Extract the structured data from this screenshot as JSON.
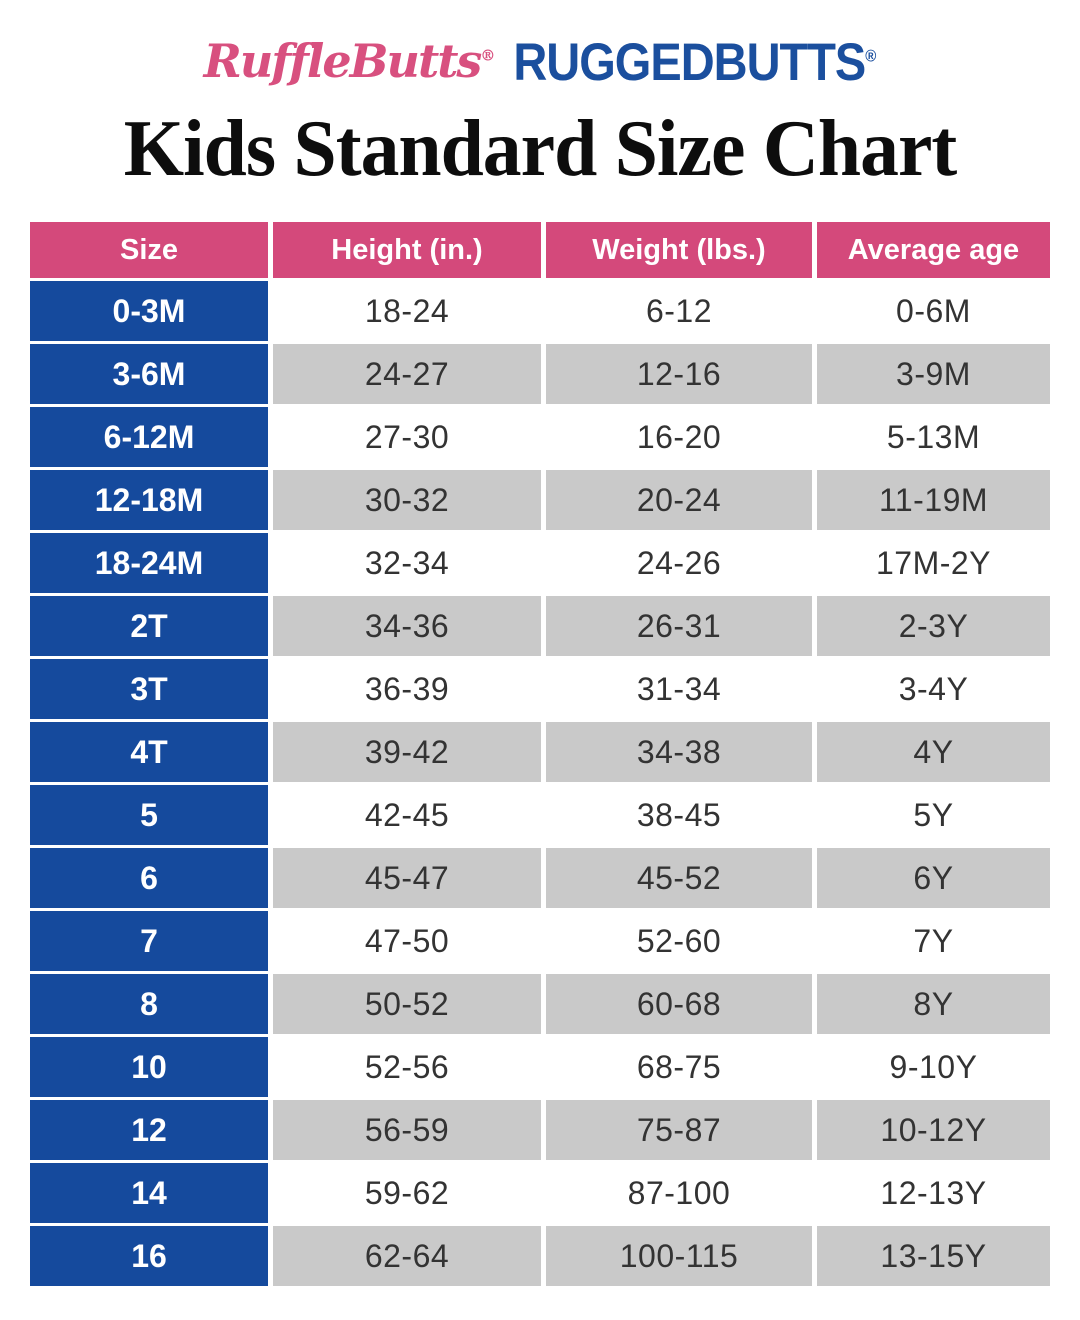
{
  "header": {
    "logo_rufflebutts": "RuffleButts",
    "logo_ruggedbutts": "RUGGEDBUTTS",
    "registered_mark": "®"
  },
  "colors": {
    "pink": "#d4497b",
    "blue": "#154a9d",
    "gray_row": "#c9c9c9",
    "logo_pink": "#d8507f",
    "logo_blue": "#1b4f9e",
    "title_black": "#0d0d0d",
    "cell_text": "#333333"
  },
  "chart_data": {
    "type": "table",
    "title": "Kids Standard Size Chart",
    "columns": [
      "Size",
      "Height (in.)",
      "Weight (lbs.)",
      "Average age"
    ],
    "rows": [
      {
        "size": "0-3M",
        "height": "18-24",
        "weight": "6-12",
        "age": "0-6M"
      },
      {
        "size": "3-6M",
        "height": "24-27",
        "weight": "12-16",
        "age": "3-9M"
      },
      {
        "size": "6-12M",
        "height": "27-30",
        "weight": "16-20",
        "age": "5-13M"
      },
      {
        "size": "12-18M",
        "height": "30-32",
        "weight": "20-24",
        "age": "11-19M"
      },
      {
        "size": "18-24M",
        "height": "32-34",
        "weight": "24-26",
        "age": "17M-2Y"
      },
      {
        "size": "2T",
        "height": "34-36",
        "weight": "26-31",
        "age": "2-3Y"
      },
      {
        "size": "3T",
        "height": "36-39",
        "weight": "31-34",
        "age": "3-4Y"
      },
      {
        "size": "4T",
        "height": "39-42",
        "weight": "34-38",
        "age": "4Y"
      },
      {
        "size": "5",
        "height": "42-45",
        "weight": "38-45",
        "age": "5Y"
      },
      {
        "size": "6",
        "height": "45-47",
        "weight": "45-52",
        "age": "6Y"
      },
      {
        "size": "7",
        "height": "47-50",
        "weight": "52-60",
        "age": "7Y"
      },
      {
        "size": "8",
        "height": "50-52",
        "weight": "60-68",
        "age": "8Y"
      },
      {
        "size": "10",
        "height": "52-56",
        "weight": "68-75",
        "age": "9-10Y"
      },
      {
        "size": "12",
        "height": "56-59",
        "weight": "75-87",
        "age": "10-12Y"
      },
      {
        "size": "14",
        "height": "59-62",
        "weight": "87-100",
        "age": "12-13Y"
      },
      {
        "size": "16",
        "height": "62-64",
        "weight": "100-115",
        "age": "13-15Y"
      }
    ]
  }
}
